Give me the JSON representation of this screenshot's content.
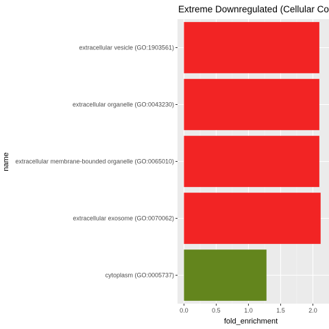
{
  "chart_data": {
    "type": "bar",
    "orientation": "horizontal",
    "title": "Extreme Downregulated (Cellular Com",
    "xlabel": "fold_enrichment",
    "ylabel": "name",
    "xlim": [
      -0.1,
      2.25
    ],
    "xticks": [
      0.0,
      0.5,
      1.0,
      1.5,
      2.0
    ],
    "xtick_labels": [
      "0.0",
      "0.5",
      "1.0",
      "1.5",
      "2.0"
    ],
    "grid": true,
    "panel_background": "#ebebeb",
    "categories": [
      "extracellular vesicle (GO:1903561)",
      "extracellular organelle (GO:0043230)",
      "extracellular membrane-bounded organelle (GO:0065010)",
      "extracellular exosome (GO:0070062)",
      "cytoplasm (GO:0005737)"
    ],
    "values": [
      2.1,
      2.1,
      2.1,
      2.12,
      1.28
    ],
    "colors": [
      "#f22424",
      "#f22424",
      "#f22424",
      "#f22424",
      "#63851d"
    ]
  }
}
